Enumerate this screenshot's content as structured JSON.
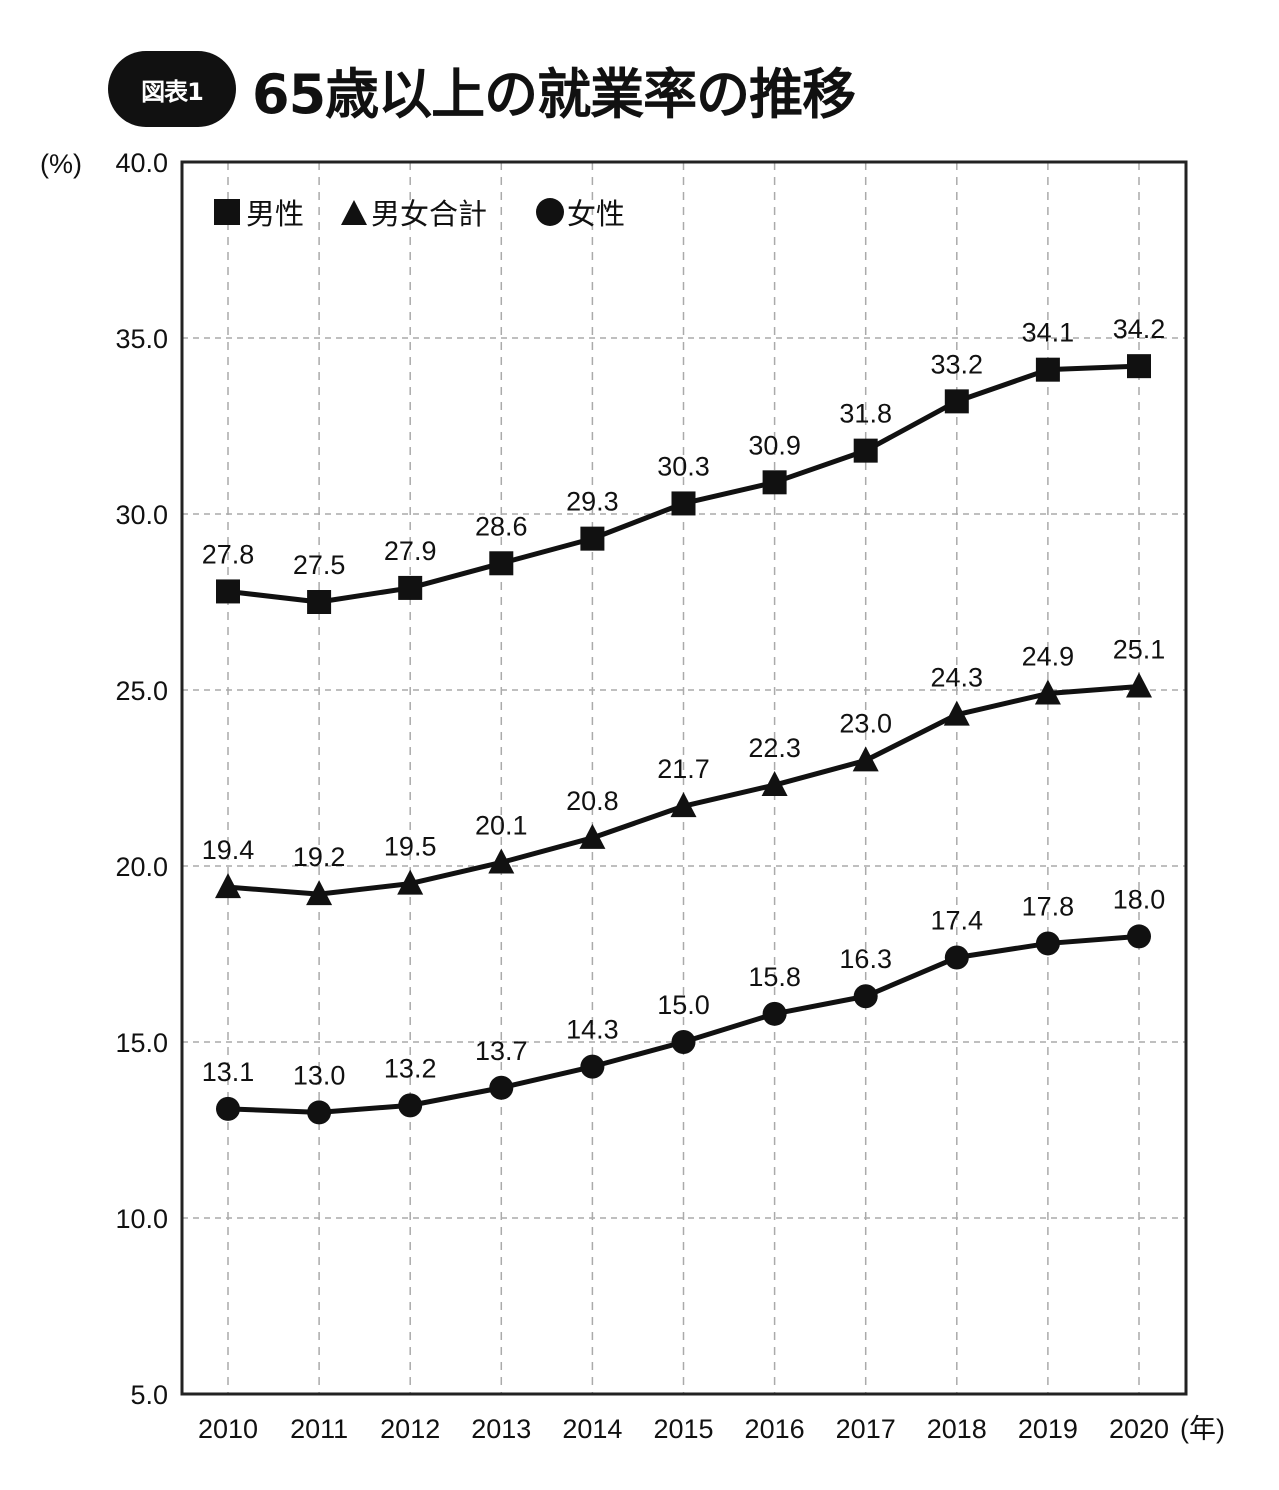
{
  "header": {
    "badge": "図表1",
    "title": "65歳以上の就業率の推移"
  },
  "axis": {
    "y_unit": "(%)",
    "x_unit": "(年)"
  },
  "legend": [
    {
      "marker": "square",
      "label": "男性"
    },
    {
      "marker": "triangle",
      "label": "男女合計"
    },
    {
      "marker": "circle",
      "label": "女性"
    }
  ],
  "chart_data": {
    "type": "line",
    "title": "65歳以上の就業率の推移",
    "xlabel": "(年)",
    "ylabel": "(%)",
    "categories": [
      "2010",
      "2011",
      "2012",
      "2013",
      "2014",
      "2015",
      "2016",
      "2017",
      "2018",
      "2019",
      "2020"
    ],
    "y_ticks": [
      "5.0",
      "10.0",
      "15.0",
      "20.0",
      "25.0",
      "30.0",
      "35.0",
      "40.0"
    ],
    "ylim": [
      5.0,
      40.0
    ],
    "grid": true,
    "legend_position": "top-left inside",
    "series": [
      {
        "name": "男性",
        "marker": "square",
        "values": [
          27.8,
          27.5,
          27.9,
          28.6,
          29.3,
          30.3,
          30.9,
          31.8,
          33.2,
          34.1,
          34.2
        ]
      },
      {
        "name": "男女合計",
        "marker": "triangle",
        "values": [
          19.4,
          19.2,
          19.5,
          20.1,
          20.8,
          21.7,
          22.3,
          23.0,
          24.3,
          24.9,
          25.1
        ]
      },
      {
        "name": "女性",
        "marker": "circle",
        "values": [
          13.1,
          13.0,
          13.2,
          13.7,
          14.3,
          15.0,
          15.8,
          16.3,
          17.4,
          17.8,
          18.0
        ]
      }
    ]
  }
}
